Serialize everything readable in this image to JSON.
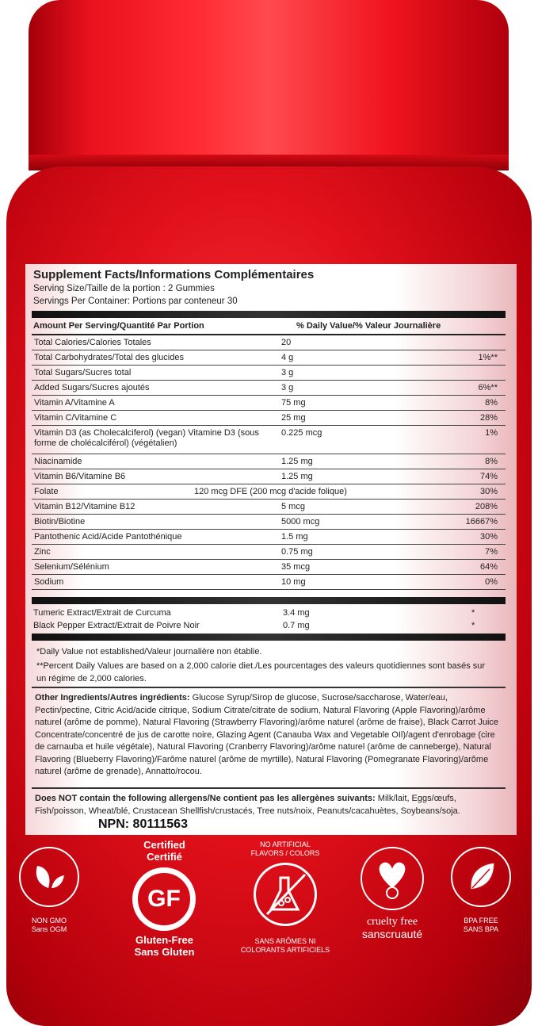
{
  "label": {
    "title": "Supplement Facts/Informations Complémentaires",
    "serving_size": "Serving Size/Taille de la portion : 2 Gummies",
    "servings_per_container": "Servings Per Container: Portions par conteneur 30",
    "header_amount": "Amount Per Serving/Quantité Par Portion",
    "header_dv": "% Daily Value/% Valeur Journalière",
    "rows": [
      {
        "name": "Total Calories/Calories Totales",
        "amount": "20",
        "dv": ""
      },
      {
        "name": "Total Carbohydrates/Total des glucides",
        "amount": "4 g",
        "dv": "1%**"
      },
      {
        "name": "Total Sugars/Sucres total",
        "amount": "3 g",
        "dv": ""
      },
      {
        "name": "Added Sugars/Sucres ajoutés",
        "amount": "3 g",
        "dv": "6%**"
      },
      {
        "name": "Vitamin A/Vitamine A",
        "amount": "75 mg",
        "dv": "8%"
      },
      {
        "name": "Vitamin C/Vitamine C",
        "amount": "25 mg",
        "dv": "28%"
      },
      {
        "name": "Vitamin D3 (as Cholecalciferol) (vegan)     Vitamine D3 (sous forme de cholécalciférol) (végétalien)",
        "amount": "0.225 mcg",
        "dv": "1%"
      },
      {
        "name": "Niacinamide",
        "amount": "1.25 mg",
        "dv": "8%"
      },
      {
        "name": "Vitamin B6/Vitamine B6",
        "amount": "1.25 mg",
        "dv": "74%"
      },
      {
        "name": "Folate",
        "amount": "120 mcg DFE (200 mcg d'acide folique)",
        "dv": "30%"
      },
      {
        "name": "Vitamin B12/Vitamine B12",
        "amount": "5 mcg",
        "dv": "208%"
      },
      {
        "name": "Biotin/Biotine",
        "amount": "5000 mcg",
        "dv": "16667%"
      },
      {
        "name": "Pantothenic Acid/Acide Pantothénique",
        "amount": "1.5 mg",
        "dv": "30%"
      },
      {
        "name": "Zinc",
        "amount": "0.75 mg",
        "dv": "7%"
      },
      {
        "name": "Selenium/Sélénium",
        "amount": "35 mcg",
        "dv": "64%"
      },
      {
        "name": "Sodium",
        "amount": "10 mg",
        "dv": "0%"
      }
    ],
    "extras": [
      {
        "name": "Tumeric Extract/Extrait de Curcuma",
        "amount": "3.4 mg",
        "dv": "*"
      },
      {
        "name": "Black Pepper Extract/Extrait de Poivre Noir",
        "amount": "0.7 mg",
        "dv": "*"
      }
    ],
    "footnote1": "*Daily Value not established/Valeur journalière non établie.",
    "footnote2": "**Percent Daily Values are based on a 2,000 calorie diet./Les pourcentages des valeurs quotidiennes sont basés sur un régime de 2,000 calories.",
    "ingredients_label": "Other Ingredients/Autres ingrédients:",
    "ingredients": "Glucose Syrup/Sirop de glucose, Sucrose/saccharose, Water/eau, Pectin/pectine, Citric Acid/acide citrique, Sodium Citrate/citrate de sodium, Natural Flavoring (Apple Flavoring)/arôme naturel (arôme de pomme), Natural Flavoring (Strawberry Flavoring)/arôme naturel (arôme de fraise), Black Carrot Juice Concentrate/concentré de jus de carotte noire, Glazing Agent (Canauba Wax and Vegetable OIl)/agent d'enrobage (cire de carnauba et huile végétale), Natural Flavoring (Cranberry Flavoring)/arôme naturel (arôme de canneberge), Natural Flavoring (Blueberry Flavoring)/Farôme naturel (arôme de myrtille), Natural Flavoring (Pomegranate Flavoring)/arôme naturel (arôme de grenade), Annatto/rocou.",
    "allergens_label": "Does NOT contain the following allergens/Ne contient pas les allergènes suivants:",
    "allergens": "Milk/lait, Eggs/œufs, Fish/poisson, Wheat/blé, Crustacean Shellfish/crustacés, Tree nuts/noix, Peanuts/cacahuètes, Soybeans/soja.",
    "npn": "NPN: 80111563"
  },
  "badges": {
    "non_gmo": {
      "line1": "NON GMO",
      "line2": "Sans OGM",
      "icon": "leaves-icon"
    },
    "gluten_free": {
      "top1": "Certified",
      "top2": "Certifié",
      "mark": "GF",
      "reg": "®",
      "line1": "Gluten-Free",
      "line2": "Sans Gluten"
    },
    "no_artificial": {
      "top1": "NO ARTIFICIAL",
      "top2": "FLAVORS / COLORS",
      "line1": "SANS ARÔMES NI",
      "line2": "COLORANTS ARTIFICIELS",
      "icon": "crossed-flask-icon"
    },
    "cruelty_free": {
      "line1": "cruelty free",
      "line2": "sanscruauté",
      "icon": "heart-bunny-icon"
    },
    "bpa_free": {
      "line1": "BPA FREE",
      "line2": "SANS BPA",
      "icon": "leaf-icon"
    }
  },
  "colors": {
    "bottle": "#e0101a",
    "cap": "#ff2b33",
    "label": "#ffffff"
  }
}
